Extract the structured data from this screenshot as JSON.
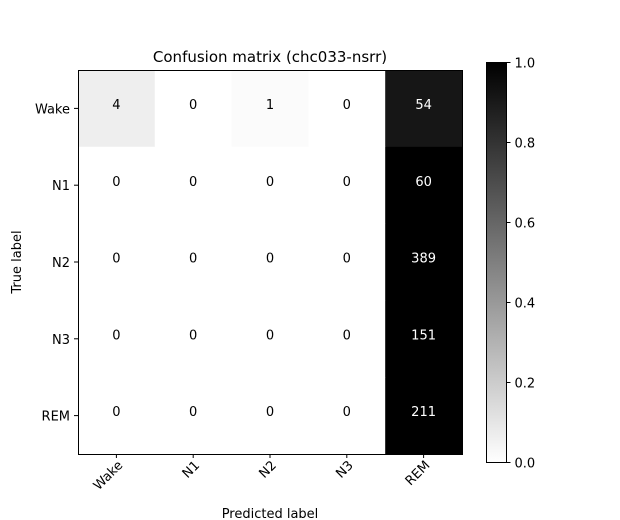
{
  "chart_data": {
    "type": "heatmap",
    "title": "Confusion matrix (chc033-nsrr)",
    "xlabel": "Predicted label",
    "ylabel": "True label",
    "x_categories": [
      "Wake",
      "N1",
      "N2",
      "N3",
      "REM"
    ],
    "y_categories": [
      "Wake",
      "N1",
      "N2",
      "N3",
      "REM"
    ],
    "values": [
      [
        4,
        0,
        1,
        0,
        54
      ],
      [
        0,
        0,
        0,
        0,
        60
      ],
      [
        0,
        0,
        0,
        0,
        389
      ],
      [
        0,
        0,
        0,
        0,
        151
      ],
      [
        0,
        0,
        0,
        0,
        211
      ]
    ],
    "color_normalization": "row",
    "colormap": "greys",
    "colorbar": {
      "range": [
        0,
        1
      ],
      "ticks": [
        "0.0",
        "0.2",
        "0.4",
        "0.6",
        "0.8",
        "1.0"
      ]
    }
  }
}
